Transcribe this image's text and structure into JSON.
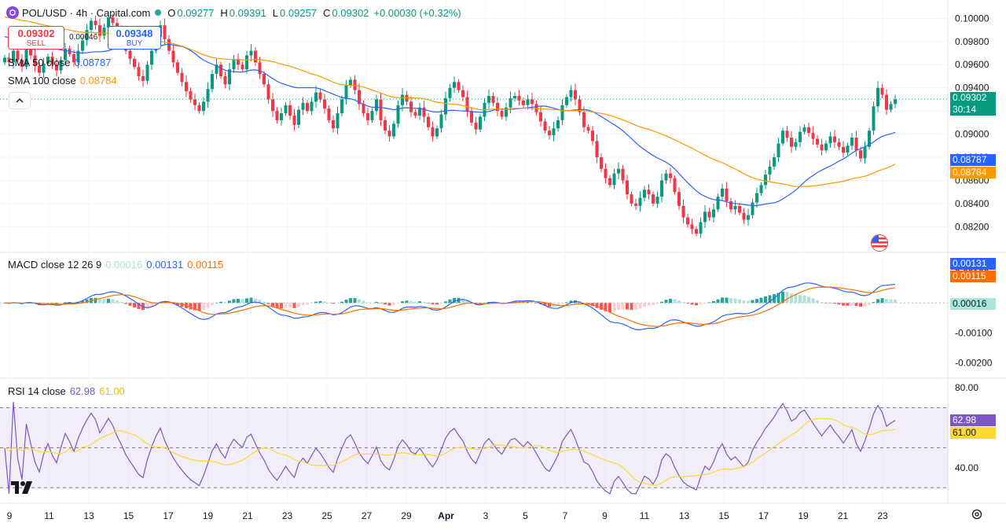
{
  "header": {
    "symbol": "POL/USD · 4h · Capital.com",
    "open_label": "O",
    "open": "0.09277",
    "high_label": "H",
    "high": "0.09391",
    "low_label": "L",
    "low": "0.09257",
    "close_label": "C",
    "close": "0.09302",
    "change": "+0.00030 (+0.32%)"
  },
  "trade": {
    "sell_price": "0.09302",
    "sell_label": "SELL",
    "spread": "0.00046",
    "buy_price": "0.09348",
    "buy_label": "BUY"
  },
  "indicators": {
    "sma50": {
      "label": "SMA 50 close",
      "value": "0.08787",
      "color": "#2962ff"
    },
    "sma100": {
      "label": "SMA 100 close",
      "value": "0.08784",
      "color": "#ff9800"
    },
    "macd": {
      "label": "MACD close 12 26 9",
      "hist": "0.00016",
      "macd": "0.00131",
      "signal": "0.00115"
    },
    "rsi": {
      "label": "RSI 14 close",
      "rsi": "62.98",
      "ma": "61.00"
    }
  },
  "price_tags": {
    "last": "0.09302",
    "countdown": "30:14",
    "sma50": "0.08787",
    "sma100": "0.08784",
    "macd": "0.00131",
    "signal": "0.00115",
    "hist": "0.00016",
    "rsi": "62.98",
    "rsi_ma": "61.00"
  },
  "colors": {
    "up": "#089981",
    "down": "#f23645",
    "sma50": "#2962ff",
    "sma100": "#ff9800",
    "rsi": "#7e57c2",
    "rsi_ma": "#fdd835"
  },
  "chart_data": [
    {
      "type": "candlestick",
      "title": "POL/USD · 4h · Capital.com",
      "x_ticks": [
        "9",
        "11",
        "13",
        "15",
        "17",
        "19",
        "21",
        "23",
        "25",
        "27",
        "29",
        "Apr",
        "3",
        "5",
        "7",
        "9",
        "11",
        "13",
        "15",
        "17",
        "19",
        "21",
        "23"
      ],
      "y_ticks": [
        "0.10000",
        "0.09800",
        "0.09600",
        "0.09400",
        "0.09200",
        "0.09000",
        "0.08800",
        "0.08600",
        "0.08400",
        "0.08200"
      ],
      "ylim": [
        0.0808,
        0.1005
      ],
      "closes": [
        0.0966,
        0.0962,
        0.0972,
        0.0964,
        0.0958,
        0.0975,
        0.0968,
        0.0959,
        0.0953,
        0.0961,
        0.0967,
        0.096,
        0.0955,
        0.0964,
        0.0974,
        0.0969,
        0.0962,
        0.0972,
        0.0981,
        0.099,
        0.0998,
        0.0994,
        0.0985,
        0.0992,
        0.1001,
        0.0996,
        0.0988,
        0.0981,
        0.0972,
        0.0965,
        0.0958,
        0.095,
        0.0946,
        0.096,
        0.0972,
        0.0984,
        0.0994,
        0.0982,
        0.0972,
        0.0962,
        0.0953,
        0.0945,
        0.0937,
        0.093,
        0.0925,
        0.092,
        0.0928,
        0.0939,
        0.0952,
        0.096,
        0.095,
        0.0943,
        0.0956,
        0.0965,
        0.096,
        0.0956,
        0.0968,
        0.0972,
        0.0962,
        0.0952,
        0.0943,
        0.093,
        0.092,
        0.0912,
        0.0918,
        0.0925,
        0.0916,
        0.0908,
        0.0921,
        0.0927,
        0.092,
        0.0928,
        0.0936,
        0.093,
        0.0922,
        0.0912,
        0.0905,
        0.0918,
        0.093,
        0.0942,
        0.0947,
        0.0938,
        0.0926,
        0.0918,
        0.0912,
        0.092,
        0.093,
        0.0912,
        0.0903,
        0.0898,
        0.0909,
        0.0925,
        0.0934,
        0.0928,
        0.0919,
        0.0916,
        0.0923,
        0.0915,
        0.0906,
        0.0898,
        0.0905,
        0.0917,
        0.0931,
        0.094,
        0.0945,
        0.0938,
        0.0932,
        0.092,
        0.091,
        0.0904,
        0.0915,
        0.0927,
        0.0933,
        0.0927,
        0.092,
        0.0915,
        0.0923,
        0.0931,
        0.0933,
        0.0929,
        0.0925,
        0.093,
        0.0926,
        0.0919,
        0.0911,
        0.0903,
        0.0899,
        0.0905,
        0.0912,
        0.0925,
        0.0932,
        0.0938,
        0.093,
        0.0919,
        0.0906,
        0.0903,
        0.0894,
        0.088,
        0.087,
        0.0862,
        0.0856,
        0.0866,
        0.087,
        0.086,
        0.0848,
        0.084,
        0.0838,
        0.0845,
        0.0852,
        0.0848,
        0.084,
        0.0846,
        0.086,
        0.0866,
        0.0862,
        0.085,
        0.0838,
        0.0828,
        0.0822,
        0.0818,
        0.0814,
        0.0824,
        0.0833,
        0.0828,
        0.0835,
        0.0846,
        0.0853,
        0.0842,
        0.0835,
        0.0838,
        0.0832,
        0.0826,
        0.083,
        0.0841,
        0.0849,
        0.0856,
        0.0865,
        0.0872,
        0.088,
        0.0892,
        0.0903,
        0.0897,
        0.0889,
        0.0893,
        0.0902,
        0.0906,
        0.0901,
        0.0896,
        0.0891,
        0.0886,
        0.0892,
        0.0898,
        0.0893,
        0.0889,
        0.0884,
        0.089,
        0.0897,
        0.0886,
        0.0879,
        0.0889,
        0.0903,
        0.0924,
        0.094,
        0.0934,
        0.0921,
        0.0926,
        0.093
      ]
    },
    {
      "type": "line",
      "title": "MACD close 12 26 9",
      "y_ticks": [
        "0.00100",
        "-0.00100",
        "-0.00200"
      ],
      "ylim": [
        -0.0023,
        0.0015
      ],
      "series": [
        {
          "name": "MACD",
          "value": 0.00131
        },
        {
          "name": "Signal",
          "value": 0.00115
        },
        {
          "name": "Histogram",
          "value": 0.00016
        }
      ]
    },
    {
      "type": "line",
      "title": "RSI 14 close",
      "y_ticks": [
        "80.00",
        "40.00"
      ],
      "ylim": [
        25,
        82
      ],
      "bands": [
        30,
        50,
        70
      ],
      "series": [
        {
          "name": "RSI",
          "value": 62.98
        },
        {
          "name": "RSI MA",
          "value": 61.0
        }
      ]
    }
  ]
}
